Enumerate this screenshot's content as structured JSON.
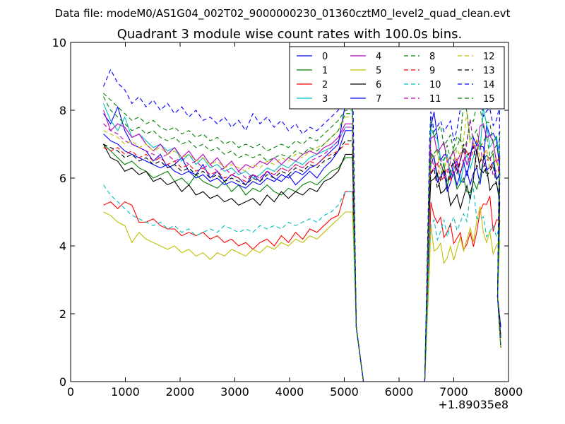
{
  "chart_data": {
    "type": "line",
    "suptitle": "Data file: modeM0/AS1G04_002T02_9000000230_01360cztM0_level2_quad_clean.evt",
    "title": "Quadrant 3 module wise count rates with 100.0s bins.",
    "xlabel": "",
    "ylabel": "",
    "x_offset_label": "+1.89035e8",
    "xlim": [
      0,
      8000
    ],
    "ylim": [
      0,
      10
    ],
    "x_ticks": [
      0,
      1000,
      2000,
      3000,
      4000,
      5000,
      6000,
      7000,
      8000
    ],
    "x_tick_labels": [
      "0",
      "1000",
      "2000",
      "3000",
      "4000",
      "5000",
      "6000",
      "7000",
      "8000"
    ],
    "y_ticks": [
      0,
      2,
      4,
      6,
      8,
      10
    ],
    "y_tick_labels": [
      "0",
      "2",
      "4",
      "6",
      "8",
      "10"
    ],
    "grid": false,
    "legend_position": "top-right",
    "legend_columns": 4,
    "series": [
      {
        "name": "0",
        "color": "#0000ff",
        "style": "solid",
        "base": 6.6,
        "values": [
          7.9,
          7.6,
          8.1,
          7.4,
          7.0,
          6.9,
          6.8,
          6.5,
          6.7,
          6.3,
          6.4,
          6.6,
          6.2,
          6.1,
          6.4,
          6.0,
          6.2,
          5.9,
          6.1,
          6.0,
          5.8,
          6.1,
          5.9,
          6.2,
          6.0,
          5.9,
          6.1,
          5.8,
          6.0,
          6.2,
          6.0,
          6.3,
          6.5,
          6.8,
          7.4
        ]
      },
      {
        "name": "1",
        "color": "#008000",
        "style": "solid",
        "base": 6.2,
        "values": [
          7.0,
          6.8,
          6.6,
          6.4,
          6.5,
          6.3,
          6.2,
          6.0,
          6.1,
          6.2,
          5.9,
          6.0,
          5.8,
          6.1,
          5.9,
          5.8,
          5.7,
          5.9,
          5.6,
          5.8,
          5.5,
          5.7,
          5.6,
          5.8,
          5.6,
          5.5,
          5.7,
          5.6,
          5.8,
          5.9,
          5.8,
          6.0,
          6.2,
          6.3,
          6.6
        ]
      },
      {
        "name": "2",
        "color": "#ff0000",
        "style": "solid",
        "base": 4.5,
        "values": [
          5.2,
          5.3,
          5.1,
          5.3,
          5.2,
          4.7,
          4.7,
          4.8,
          4.6,
          4.5,
          4.5,
          4.3,
          4.4,
          4.3,
          4.4,
          4.2,
          4.3,
          4.1,
          4.2,
          4.0,
          4.1,
          3.9,
          4.1,
          4.2,
          4.0,
          4.3,
          4.1,
          4.4,
          4.2,
          4.5,
          4.4,
          4.6,
          4.8,
          4.9,
          5.6
        ]
      },
      {
        "name": "3",
        "color": "#00bfbf",
        "style": "solid",
        "base": 6.8,
        "values": [
          8.2,
          7.7,
          7.4,
          7.8,
          7.2,
          7.3,
          7.1,
          6.9,
          7.0,
          6.8,
          6.9,
          6.5,
          6.7,
          6.4,
          6.6,
          6.3,
          6.4,
          6.2,
          6.3,
          6.1,
          6.2,
          6.0,
          6.1,
          6.3,
          6.2,
          6.4,
          6.3,
          6.5,
          6.4,
          6.6,
          6.7,
          6.8,
          6.9,
          7.1,
          7.5
        ]
      },
      {
        "name": "4",
        "color": "#bf00bf",
        "style": "solid",
        "base": 6.9,
        "values": [
          8.0,
          7.4,
          7.6,
          7.5,
          7.2,
          7.3,
          7.0,
          6.8,
          7.0,
          6.7,
          6.9,
          6.6,
          6.8,
          6.5,
          6.7,
          6.4,
          6.6,
          6.3,
          6.5,
          6.2,
          6.4,
          6.3,
          6.5,
          6.4,
          6.6,
          6.4,
          6.6,
          6.5,
          6.7,
          6.8,
          6.7,
          6.9,
          7.0,
          7.2,
          7.6
        ]
      },
      {
        "name": "5",
        "color": "#bfbf00",
        "style": "solid",
        "base": 4.1,
        "values": [
          5.0,
          4.9,
          4.7,
          4.6,
          4.1,
          4.4,
          4.2,
          4.1,
          4.0,
          3.9,
          4.0,
          3.8,
          3.9,
          3.7,
          3.8,
          3.6,
          3.8,
          3.7,
          3.9,
          3.8,
          3.7,
          3.9,
          3.8,
          4.0,
          3.9,
          4.1,
          4.0,
          4.2,
          4.1,
          4.3,
          4.2,
          4.4,
          4.6,
          4.8,
          5.0
        ]
      },
      {
        "name": "6",
        "color": "#000000",
        "style": "solid",
        "base": 5.8,
        "values": [
          7.0,
          6.6,
          6.5,
          6.2,
          6.3,
          6.1,
          6.2,
          5.9,
          6.0,
          5.8,
          5.9,
          5.6,
          5.8,
          5.5,
          5.6,
          5.4,
          5.5,
          5.3,
          5.4,
          5.2,
          5.3,
          5.4,
          5.2,
          5.5,
          5.3,
          5.6,
          5.4,
          5.6,
          5.5,
          5.7,
          5.6,
          5.9,
          6.0,
          6.2,
          6.7
        ]
      },
      {
        "name": "7",
        "color": "#0000ff",
        "style": "solid",
        "base": 6.4,
        "values": [
          7.3,
          7.1,
          7.0,
          6.8,
          6.7,
          6.6,
          6.5,
          6.4,
          6.3,
          6.4,
          6.2,
          6.1,
          6.2,
          6.0,
          6.1,
          5.9,
          6.0,
          5.8,
          5.9,
          5.8,
          5.7,
          5.9,
          5.8,
          6.0,
          5.9,
          6.1,
          6.0,
          6.2,
          6.1,
          6.3,
          6.4,
          6.6,
          6.8,
          7.0,
          8.2
        ]
      },
      {
        "name": "8",
        "color": "#008000",
        "style": "dashed",
        "base": 7.2,
        "values": [
          8.5,
          8.3,
          8.1,
          7.9,
          7.7,
          7.8,
          7.6,
          7.7,
          7.5,
          7.4,
          7.5,
          7.3,
          7.4,
          7.2,
          7.3,
          7.1,
          7.2,
          7.0,
          7.1,
          6.9,
          7.0,
          6.9,
          7.0,
          6.8,
          6.9,
          7.0,
          6.9,
          7.1,
          7.0,
          7.2,
          7.1,
          7.3,
          7.5,
          7.7,
          8.0
        ]
      },
      {
        "name": "9",
        "color": "#ff0000",
        "style": "dashed",
        "base": 6.5,
        "values": [
          6.9,
          6.8,
          6.9,
          6.7,
          6.8,
          6.6,
          6.7,
          6.5,
          6.6,
          6.4,
          6.5,
          6.3,
          6.4,
          6.2,
          6.3,
          6.1,
          6.2,
          6.0,
          6.1,
          6.0,
          5.9,
          6.1,
          6.0,
          6.2,
          6.1,
          6.3,
          6.2,
          6.4,
          6.3,
          6.5,
          6.4,
          6.6,
          6.7,
          6.8,
          7.0
        ]
      },
      {
        "name": "10",
        "color": "#00bfbf",
        "style": "dashed",
        "base": 4.7,
        "values": [
          5.8,
          5.5,
          5.3,
          5.1,
          4.9,
          4.8,
          4.7,
          4.6,
          4.7,
          4.5,
          4.6,
          4.4,
          4.5,
          4.3,
          4.4,
          4.5,
          4.4,
          4.6,
          4.5,
          4.4,
          4.5,
          4.4,
          4.6,
          4.5,
          4.6,
          4.5,
          4.7,
          4.6,
          4.7,
          4.8,
          4.7,
          4.9,
          5.0,
          5.2,
          5.6
        ]
      },
      {
        "name": "11",
        "color": "#bf00bf",
        "style": "dashed",
        "base": 6.5,
        "values": [
          7.6,
          7.4,
          7.3,
          7.1,
          7.0,
          6.9,
          6.8,
          6.7,
          6.6,
          6.7,
          6.5,
          6.6,
          6.4,
          6.5,
          6.3,
          6.4,
          6.2,
          6.3,
          6.1,
          6.2,
          6.0,
          6.1,
          6.0,
          6.2,
          6.1,
          6.3,
          6.2,
          6.4,
          6.3,
          6.5,
          6.6,
          6.7,
          6.9,
          7.1,
          7.5
        ]
      },
      {
        "name": "12",
        "color": "#bfbf00",
        "style": "dashed",
        "base": 6.7,
        "values": [
          7.4,
          7.3,
          7.2,
          7.0,
          7.1,
          6.9,
          7.0,
          6.8,
          6.9,
          6.7,
          6.8,
          6.6,
          6.7,
          6.5,
          6.6,
          6.4,
          6.5,
          6.3,
          6.4,
          6.3,
          6.2,
          6.4,
          6.3,
          6.5,
          6.4,
          6.6,
          6.5,
          6.7,
          6.6,
          6.8,
          6.9,
          7.0,
          7.2,
          7.4,
          7.8
        ]
      },
      {
        "name": "13",
        "color": "#000000",
        "style": "dashed",
        "base": 6.3,
        "values": [
          7.0,
          6.9,
          6.8,
          6.6,
          6.7,
          6.5,
          6.6,
          6.4,
          6.5,
          6.3,
          6.4,
          6.2,
          6.3,
          6.1,
          6.2,
          6.0,
          6.1,
          5.9,
          6.0,
          5.9,
          5.8,
          6.0,
          5.9,
          6.1,
          6.0,
          6.2,
          6.1,
          6.3,
          6.2,
          6.4,
          6.3,
          6.5,
          6.6,
          6.8,
          7.1
        ]
      },
      {
        "name": "14",
        "color": "#0000ff",
        "style": "dashed",
        "base": 7.8,
        "values": [
          8.7,
          9.2,
          8.8,
          8.6,
          8.2,
          8.4,
          8.1,
          8.3,
          8.0,
          8.2,
          7.9,
          8.1,
          7.8,
          8.0,
          7.7,
          7.8,
          7.6,
          7.8,
          7.5,
          7.7,
          7.4,
          7.9,
          7.6,
          7.8,
          7.5,
          7.7,
          7.4,
          7.6,
          7.3,
          7.5,
          7.4,
          7.6,
          7.8,
          8.0,
          9.4
        ]
      },
      {
        "name": "15",
        "color": "#008000",
        "style": "dashed",
        "base": 6.9,
        "values": [
          8.4,
          8.0,
          7.8,
          7.6,
          7.4,
          7.5,
          7.3,
          7.4,
          7.2,
          7.1,
          7.2,
          7.0,
          7.1,
          6.9,
          7.0,
          6.8,
          6.9,
          6.7,
          6.8,
          6.6,
          6.7,
          6.6,
          6.7,
          6.5,
          6.6,
          6.7,
          6.6,
          6.8,
          6.7,
          6.9,
          6.8,
          7.0,
          7.2,
          7.4,
          7.9
        ]
      }
    ],
    "x_first_segment": {
      "start": 600,
      "step": 130
    },
    "x_second_segment": {
      "start": 6480,
      "step": 60
    },
    "gap": {
      "drop_start": 5180,
      "drop_end": 5350,
      "rise_start": 6470,
      "rise_end": 6560
    },
    "tail_drop": {
      "start": 7760,
      "end": 7860
    }
  }
}
